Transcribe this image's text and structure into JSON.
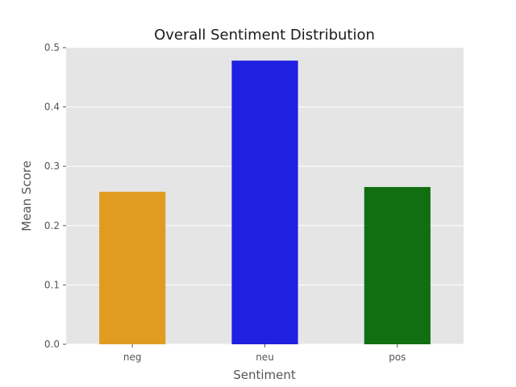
{
  "chart_data": {
    "type": "bar",
    "title": "Overall Sentiment Distribution",
    "xlabel": "Sentiment",
    "ylabel": "Mean Score",
    "categories": [
      "neg",
      "neu",
      "pos"
    ],
    "values": [
      0.257,
      0.478,
      0.265
    ],
    "colors": [
      "#e09c20",
      "#2020e0",
      "#116e11"
    ],
    "ylim": [
      0,
      0.5
    ],
    "yticks": [
      "0.0",
      "0.1",
      "0.2",
      "0.3",
      "0.4",
      "0.5"
    ],
    "grid": true,
    "legend": "none",
    "background": "#e5e5e5"
  }
}
